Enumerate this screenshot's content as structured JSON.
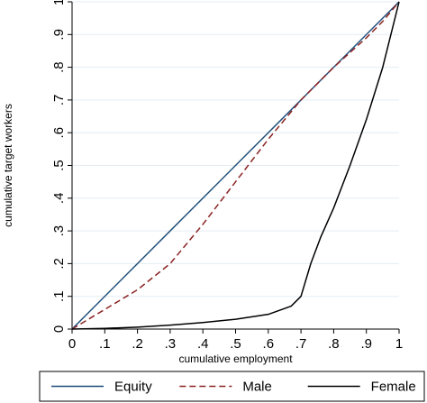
{
  "chart_data": {
    "type": "line",
    "title": "",
    "xlabel": "cumulative employment",
    "ylabel": "cumulative target workers",
    "xlim": [
      0,
      1
    ],
    "ylim": [
      0,
      1
    ],
    "grid": "horizontal",
    "legend_position": "bottom",
    "x_ticks": [
      0,
      0.1,
      0.2,
      0.3,
      0.4,
      0.5,
      0.6,
      0.7,
      0.8,
      0.9,
      1
    ],
    "x_tick_labels": [
      "0",
      ".1",
      ".2",
      ".3",
      ".4",
      ".5",
      ".6",
      ".7",
      ".8",
      ".9",
      "1"
    ],
    "y_ticks": [
      0,
      0.1,
      0.2,
      0.3,
      0.4,
      0.5,
      0.6,
      0.7,
      0.8,
      0.9,
      1
    ],
    "y_tick_labels": [
      "0",
      ".1",
      ".2",
      ".3",
      ".4",
      ".5",
      ".6",
      ".7",
      ".8",
      ".9",
      "1"
    ],
    "series": [
      {
        "name": "Equity",
        "color": "#1f4e79",
        "style": "solid",
        "points": [
          [
            0,
            0
          ],
          [
            1,
            1
          ]
        ]
      },
      {
        "name": "Male",
        "color": "#8b2323",
        "style": "dashed",
        "points": [
          [
            0,
            0
          ],
          [
            0.1,
            0.06
          ],
          [
            0.2,
            0.12
          ],
          [
            0.3,
            0.2
          ],
          [
            0.4,
            0.32
          ],
          [
            0.5,
            0.45
          ],
          [
            0.6,
            0.58
          ],
          [
            0.7,
            0.7
          ],
          [
            0.8,
            0.8
          ],
          [
            0.9,
            0.89
          ],
          [
            0.95,
            0.94
          ],
          [
            1,
            1
          ]
        ]
      },
      {
        "name": "Female",
        "color": "#000000",
        "style": "solid",
        "points": [
          [
            0,
            0
          ],
          [
            0.1,
            0.002
          ],
          [
            0.2,
            0.006
          ],
          [
            0.3,
            0.012
          ],
          [
            0.4,
            0.02
          ],
          [
            0.5,
            0.03
          ],
          [
            0.6,
            0.045
          ],
          [
            0.67,
            0.07
          ],
          [
            0.7,
            0.1
          ],
          [
            0.73,
            0.2
          ],
          [
            0.76,
            0.28
          ],
          [
            0.8,
            0.37
          ],
          [
            0.85,
            0.5
          ],
          [
            0.9,
            0.64
          ],
          [
            0.95,
            0.8
          ],
          [
            1,
            1
          ]
        ]
      }
    ]
  }
}
